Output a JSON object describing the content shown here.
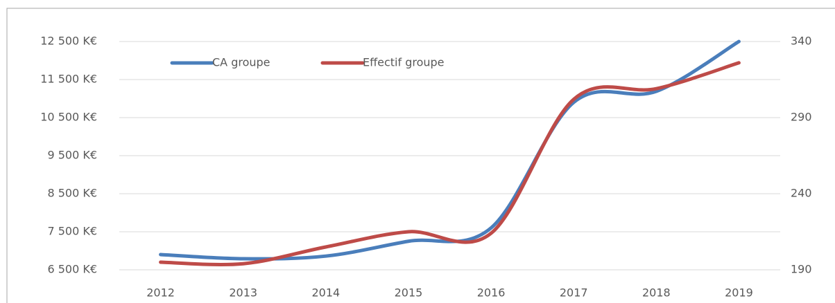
{
  "chart_data": {
    "type": "line",
    "categories": [
      "2012",
      "2013",
      "2014",
      "2015",
      "2016",
      "2017",
      "2018",
      "2019"
    ],
    "series": [
      {
        "name": "CA groupe",
        "color": "#4a7ebb",
        "values": [
          6900,
          6790,
          6860,
          7250,
          7600,
          10900,
          11190,
          12500
        ]
      },
      {
        "name": "Effectif groupe",
        "color": "#be4b48",
        "axis": "y2",
        "values": [
          195,
          194,
          205,
          215,
          214,
          302,
          309,
          326
        ]
      }
    ],
    "ylim": [
      6500,
      12500
    ],
    "yticks": [
      {
        "value": 6500,
        "label": "6 500 K€"
      },
      {
        "value": 7500,
        "label": "7 500 K€"
      },
      {
        "value": 8500,
        "label": "8 500 K€"
      },
      {
        "value": 9500,
        "label": "9 500 K€"
      },
      {
        "value": 10500,
        "label": "10 500 K€"
      },
      {
        "value": 11500,
        "label": "11 500 K€"
      },
      {
        "value": 12500,
        "label": "12 500 K€"
      }
    ],
    "y2lim": [
      190,
      340
    ],
    "y2ticks": [
      190,
      240,
      290,
      340
    ],
    "grid": true,
    "legend": "top-left"
  }
}
